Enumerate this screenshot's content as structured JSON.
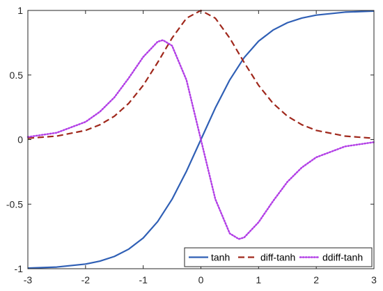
{
  "chart_data": {
    "type": "line",
    "title": "",
    "xlabel": "",
    "ylabel": "",
    "xlim": [
      -3,
      3
    ],
    "ylim": [
      -1,
      1
    ],
    "xticks": [
      -3,
      -2,
      -1,
      0,
      1,
      2,
      3
    ],
    "yticks": [
      -1,
      -0.5,
      0,
      0.5,
      1
    ],
    "xtick_labels": [
      "-3",
      "-2",
      "-1",
      "0",
      "1",
      "2",
      "3"
    ],
    "ytick_labels": [
      "-1",
      "-0.5",
      "0",
      "0.5",
      "1"
    ],
    "grid": false,
    "legend": {
      "placement": "bottom-right",
      "orientation": "horizontal"
    },
    "series": [
      {
        "name": "tanh",
        "color": "#2f5fb5",
        "style": "solid",
        "x": [
          -3,
          -2.5,
          -2,
          -1.75,
          -1.5,
          -1.25,
          -1,
          -0.75,
          -0.5,
          -0.25,
          0,
          0.25,
          0.5,
          0.75,
          1,
          1.25,
          1.5,
          1.75,
          2,
          2.5,
          3
        ],
        "y": [
          -0.995,
          -0.987,
          -0.964,
          -0.941,
          -0.905,
          -0.848,
          -0.762,
          -0.635,
          -0.462,
          -0.245,
          0,
          0.245,
          0.462,
          0.635,
          0.762,
          0.848,
          0.905,
          0.941,
          0.964,
          0.987,
          0.995
        ]
      },
      {
        "name": "diff-tanh",
        "color": "#a0281c",
        "style": "dashed",
        "x": [
          -3,
          -2.5,
          -2,
          -1.75,
          -1.5,
          -1.25,
          -1,
          -0.75,
          -0.5,
          -0.25,
          0,
          0.25,
          0.5,
          0.75,
          1,
          1.25,
          1.5,
          1.75,
          2,
          2.5,
          3
        ],
        "y": [
          0.01,
          0.027,
          0.071,
          0.115,
          0.181,
          0.281,
          0.42,
          0.597,
          0.786,
          0.94,
          1,
          0.94,
          0.786,
          0.597,
          0.42,
          0.281,
          0.181,
          0.115,
          0.071,
          0.027,
          0.01
        ]
      },
      {
        "name": "ddiff-tanh",
        "color": "#b23fe6",
        "style": "dotted",
        "x": [
          -3,
          -2.5,
          -2,
          -1.75,
          -1.5,
          -1.25,
          -1,
          -0.75,
          -0.658,
          -0.5,
          -0.25,
          0,
          0.25,
          0.5,
          0.658,
          0.75,
          1,
          1.25,
          1.5,
          1.75,
          2,
          2.5,
          3
        ],
        "y": [
          0.02,
          0.053,
          0.137,
          0.216,
          0.327,
          0.477,
          0.64,
          0.758,
          0.77,
          0.727,
          0.461,
          0,
          -0.461,
          -0.727,
          -0.77,
          -0.758,
          -0.64,
          -0.477,
          -0.327,
          -0.216,
          -0.137,
          -0.053,
          -0.02
        ]
      }
    ]
  }
}
